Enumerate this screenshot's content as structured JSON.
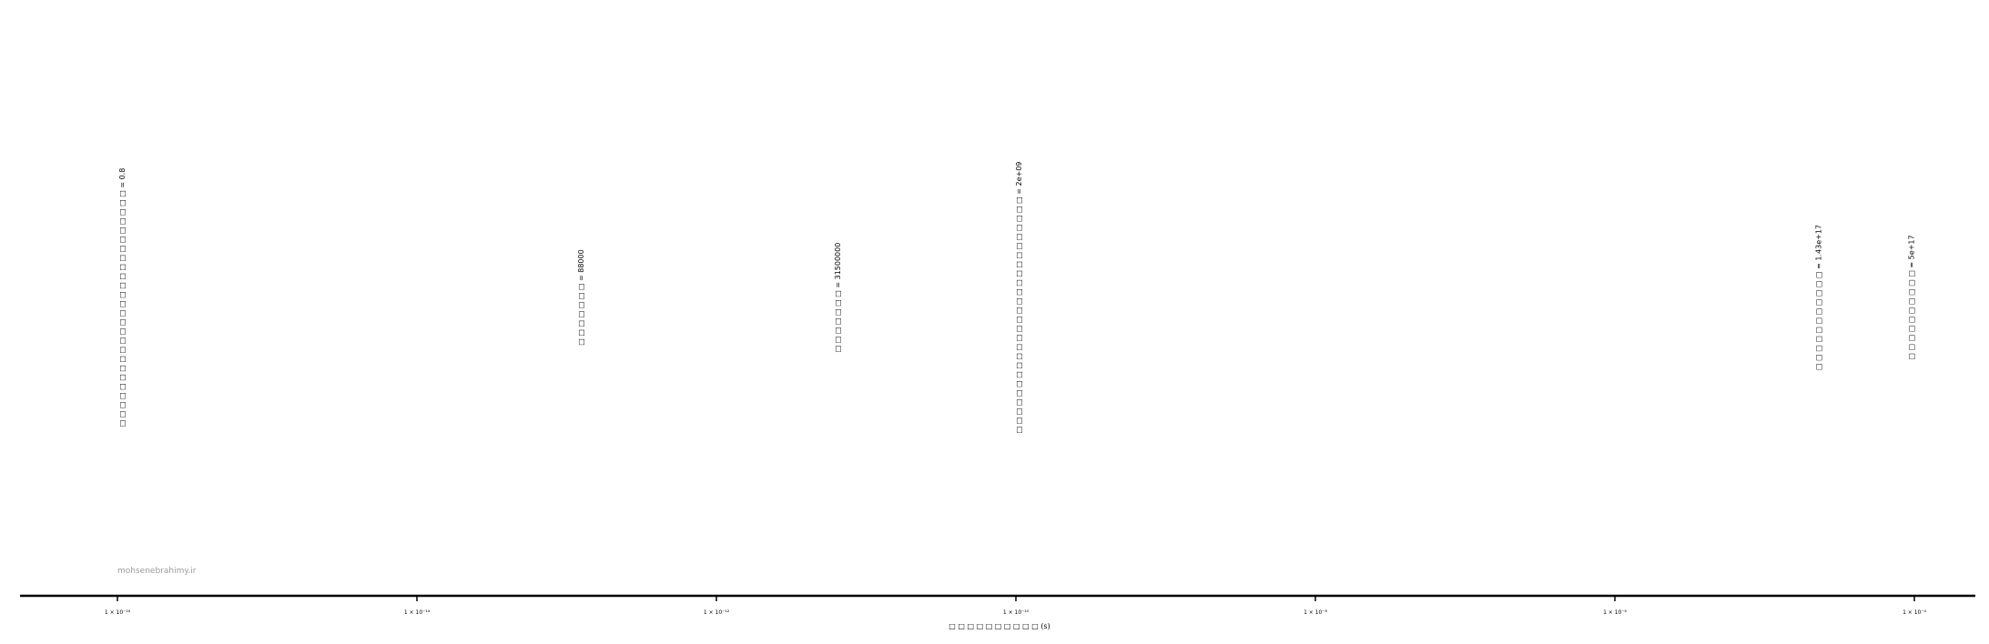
{
  "chart_data": {
    "type": "scatter",
    "x_scale": "log",
    "xlim": [
      1e-16,
      1e-05
    ],
    "grid": false,
    "legend": "none",
    "xlabel": "□ □ □ □  □ □ □ □ □ □ (s)",
    "ylabel": "",
    "title": "",
    "ticks": [
      {
        "value": 1e-16,
        "label": "1 × 10⁻¹⁶"
      },
      {
        "value": 1e-14,
        "label": "1 × 10⁻¹⁴"
      },
      {
        "value": 1e-12,
        "label": "1 × 10⁻¹²"
      },
      {
        "value": 1e-10,
        "label": "1 × 10⁻¹⁰"
      },
      {
        "value": 1e-08,
        "label": "1 × 10⁻⁸"
      },
      {
        "value": 1e-06,
        "label": "1 × 10⁻⁶"
      },
      {
        "value": 0.0001,
        "label": "1 × 10⁻⁴"
      }
    ],
    "annotations": [
      {
        "x": 1.08e-16,
        "label": "□ □ □ □ □ □ □ □ □ □ □ □ □ □ □ □ □ □ □ □ □ □ □ □ □ □ = 0.8"
      },
      {
        "x": 1.25e-13,
        "label": "□ □ □ □ □ □ □ = 88000"
      },
      {
        "x": 6.5e-12,
        "label": "□ □ □ □ □ □ □ = 31500000"
      },
      {
        "x": 1.05e-10,
        "label": "□ □ □ □ □ □ □ □ □ □ □ □ □ □ □ □ □ □ □ □ □ □ □ □ □ □ = 2e+09"
      },
      {
        "x": 2.3e-05,
        "label": "□ □ □ □ □ □ □ □ □ □ □ = 1.43e+17"
      },
      {
        "x": 9.6e-05,
        "label": "□ □ □ □ □ □ □ □ □ □ = 5e+17"
      }
    ],
    "colors": {
      "axis": "#000000",
      "text": "#000000"
    }
  },
  "watermark": "mohsenebrahimy.ir"
}
